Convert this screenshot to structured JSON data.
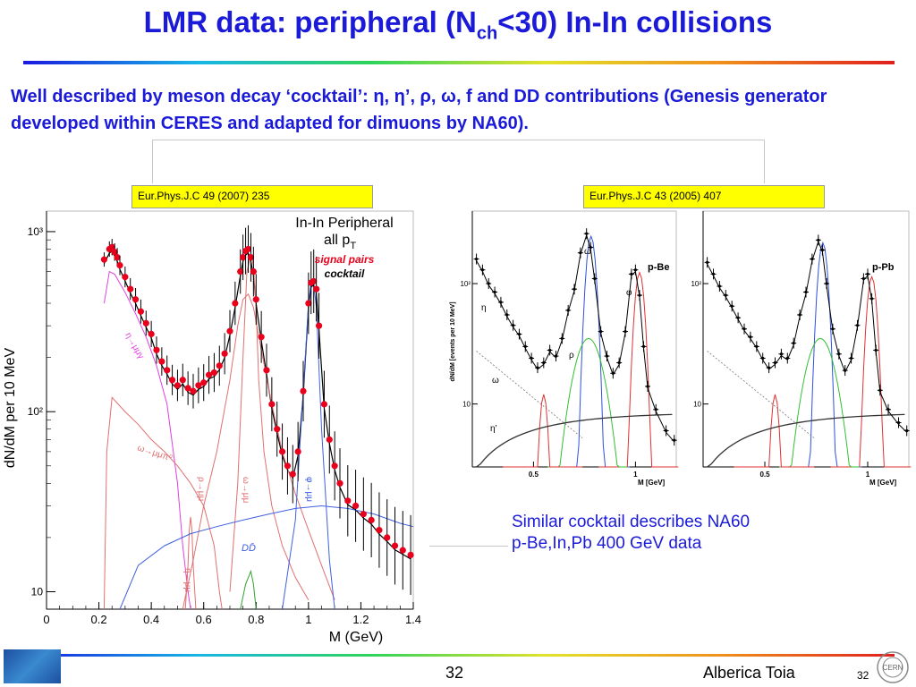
{
  "slide": {
    "title_main": "LMR data: peripheral (N",
    "title_sub": "ch",
    "title_rest": "<30) In-In collisions",
    "subtitle": "Well described by meson decay ‘cocktail’: η, η’, ρ, ω, f and DD contributions (Genesis generator developed within CERES and adapted for dimuons by NA60).",
    "ref_left": "Eur.Phys.J.C 49 (2007) 235",
    "ref_right": "Eur.Phys.J.C 43 (2005) 407",
    "note_line1": "Similar cocktail describes NA60",
    "note_line2": "p-Be,In,Pb 400 GeV data",
    "page_number": "32",
    "author": "Alberica Toia",
    "page_number_small": "32",
    "logo_text": "CERN",
    "colors": {
      "title": "#1a1ad8",
      "signal": "#e8001c",
      "ref_bg": "#ffff00"
    }
  },
  "chart_data": [
    {
      "type": "line",
      "panel": "In-In",
      "title": "In-In Peripheral",
      "subtitle": "all p",
      "subtitle_sub": "T",
      "legend": [
        "signal pairs",
        "cocktail"
      ],
      "xlabel": "M (GeV)",
      "ylabel": "dN/dM per 10 MeV",
      "xlim": [
        0,
        1.4
      ],
      "ylim": [
        8,
        1300
      ],
      "yscale": "log",
      "xticks": [
        "0",
        "0.2",
        "0.4",
        "0.6",
        "0.8",
        "1",
        "1.2",
        "1.4"
      ],
      "yticks": [
        "10",
        "10²",
        "10³"
      ],
      "annotations": [
        "η→μμγ",
        "ω→μμπ⁰",
        "ρ→μμ",
        "ω→μμ",
        "η→μμ",
        "φ→μμ",
        "DD̄"
      ],
      "series": [
        {
          "name": "signal pairs",
          "color": "#e8001c",
          "x": [
            0.22,
            0.24,
            0.25,
            0.26,
            0.27,
            0.28,
            0.3,
            0.32,
            0.34,
            0.36,
            0.38,
            0.4,
            0.42,
            0.44,
            0.46,
            0.48,
            0.5,
            0.52,
            0.54,
            0.56,
            0.58,
            0.6,
            0.62,
            0.64,
            0.66,
            0.68,
            0.7,
            0.72,
            0.74,
            0.75,
            0.76,
            0.77,
            0.78,
            0.79,
            0.8,
            0.82,
            0.84,
            0.86,
            0.88,
            0.9,
            0.92,
            0.94,
            0.96,
            0.98,
            1.0,
            1.01,
            1.02,
            1.03,
            1.04,
            1.06,
            1.08,
            1.1,
            1.12,
            1.15,
            1.18,
            1.21,
            1.24,
            1.27,
            1.3,
            1.33,
            1.36,
            1.39
          ],
          "y": [
            700,
            800,
            820,
            770,
            720,
            650,
            560,
            480,
            420,
            360,
            310,
            270,
            220,
            190,
            170,
            150,
            140,
            150,
            135,
            130,
            140,
            145,
            160,
            165,
            180,
            210,
            280,
            400,
            600,
            720,
            780,
            800,
            720,
            600,
            420,
            260,
            170,
            110,
            80,
            60,
            50,
            45,
            60,
            130,
            400,
            520,
            530,
            480,
            300,
            110,
            70,
            50,
            40,
            32,
            30,
            27,
            25,
            22,
            20,
            18,
            17,
            16
          ]
        },
        {
          "name": "η→μμγ",
          "color": "#e040e0",
          "x": [
            0.22,
            0.24,
            0.26,
            0.3,
            0.34,
            0.38,
            0.42,
            0.46,
            0.5,
            0.52,
            0.54,
            0.55
          ],
          "y": [
            400,
            600,
            580,
            460,
            350,
            260,
            180,
            110,
            40,
            18,
            10,
            8
          ]
        },
        {
          "name": "ω→μμπ⁰",
          "color": "#e07070",
          "x": [
            0.22,
            0.23,
            0.25,
            0.3,
            0.35,
            0.4,
            0.45,
            0.5,
            0.55,
            0.6,
            0.64,
            0.66,
            0.67
          ],
          "y": [
            8,
            60,
            120,
            100,
            85,
            70,
            60,
            50,
            40,
            30,
            18,
            10,
            8
          ]
        },
        {
          "name": "ρ→μμ",
          "color": "#e07070",
          "x": [
            0.52,
            0.56,
            0.6,
            0.65,
            0.7,
            0.73,
            0.75,
            0.77,
            0.79,
            0.82,
            0.86,
            0.9,
            0.95,
            1.0,
            1.05,
            1.1
          ],
          "y": [
            8,
            15,
            30,
            60,
            150,
            300,
            420,
            450,
            380,
            220,
            110,
            60,
            35,
            22,
            14,
            9
          ]
        },
        {
          "name": "ω→μμ",
          "color": "#e07070",
          "x": [
            0.7,
            0.73,
            0.75,
            0.765,
            0.78,
            0.79,
            0.8,
            0.81,
            0.83,
            0.86,
            0.9,
            0.95,
            1.0
          ],
          "y": [
            10,
            40,
            200,
            600,
            740,
            650,
            380,
            150,
            60,
            30,
            18,
            12,
            9
          ]
        },
        {
          "name": "η→μμ",
          "color": "#e07070",
          "x": [
            0.53,
            0.54,
            0.545,
            0.55,
            0.555,
            0.56,
            0.57
          ],
          "y": [
            8,
            14,
            22,
            26,
            22,
            14,
            8
          ]
        },
        {
          "name": "φ→μμ",
          "color": "#4060e0",
          "x": [
            0.9,
            0.95,
            0.98,
            1.0,
            1.01,
            1.02,
            1.03,
            1.05,
            1.08,
            1.1
          ],
          "y": [
            8,
            25,
            130,
            400,
            520,
            510,
            380,
            80,
            15,
            8
          ]
        },
        {
          "name": "DD̄",
          "color": "#4060e0",
          "x": [
            0.28,
            0.35,
            0.45,
            0.55,
            0.65,
            0.75,
            0.85,
            0.95,
            1.05,
            1.15,
            1.25,
            1.35,
            1.4
          ],
          "y": [
            8,
            14,
            18,
            21,
            23,
            25,
            27,
            29,
            30,
            29,
            27,
            24,
            23
          ]
        },
        {
          "name": "η'→μμγ",
          "color": "#30a030",
          "x": [
            0.74,
            0.76,
            0.78,
            0.79,
            0.8
          ],
          "y": [
            8,
            11,
            13,
            11,
            8
          ]
        }
      ]
    },
    {
      "type": "line",
      "panel": "p-Be",
      "label": "p-Be",
      "xlabel": "M [GeV]",
      "ylabel": "dN/dM [events per 10 MeV]",
      "xlim": [
        0.2,
        1.2
      ],
      "ylim": [
        3,
        400
      ],
      "yscale": "log",
      "xticks": [
        "0.5",
        "1"
      ],
      "yticks": [
        "10",
        "10²"
      ],
      "annotations": [
        "ω",
        "φ",
        "ρ",
        "η",
        "ω",
        "η’"
      ],
      "series": [
        {
          "name": "data",
          "color": "#000000",
          "x": [
            0.22,
            0.25,
            0.28,
            0.31,
            0.34,
            0.37,
            0.4,
            0.43,
            0.46,
            0.49,
            0.52,
            0.55,
            0.58,
            0.61,
            0.64,
            0.67,
            0.7,
            0.73,
            0.76,
            0.78,
            0.8,
            0.83,
            0.86,
            0.89,
            0.92,
            0.95,
            0.98,
            1.0,
            1.02,
            1.04,
            1.06,
            1.1,
            1.15,
            1.19
          ],
          "y": [
            160,
            130,
            100,
            85,
            70,
            55,
            45,
            38,
            30,
            24,
            20,
            22,
            28,
            25,
            35,
            60,
            90,
            180,
            260,
            200,
            110,
            40,
            25,
            18,
            22,
            40,
            120,
            130,
            80,
            30,
            14,
            9,
            6,
            5
          ]
        }
      ]
    },
    {
      "type": "line",
      "panel": "p-Pb",
      "label": "p-Pb",
      "xlabel": "M [GeV]",
      "xlim": [
        0.2,
        1.2
      ],
      "ylim": [
        3,
        400
      ],
      "yscale": "log",
      "xticks": [
        "0.5",
        "1"
      ],
      "yticks": [
        "10",
        "10²"
      ],
      "series": [
        {
          "name": "data",
          "color": "#000000",
          "x": [
            0.22,
            0.25,
            0.28,
            0.31,
            0.34,
            0.37,
            0.4,
            0.43,
            0.46,
            0.49,
            0.52,
            0.55,
            0.58,
            0.61,
            0.64,
            0.67,
            0.7,
            0.73,
            0.76,
            0.78,
            0.8,
            0.83,
            0.86,
            0.89,
            0.92,
            0.95,
            0.98,
            1.0,
            1.02,
            1.04,
            1.06,
            1.1,
            1.15,
            1.19
          ],
          "y": [
            150,
            120,
            95,
            80,
            65,
            52,
            42,
            36,
            30,
            24,
            20,
            22,
            26,
            24,
            32,
            55,
            85,
            160,
            230,
            190,
            100,
            42,
            26,
            19,
            24,
            45,
            110,
            120,
            75,
            28,
            13,
            9,
            7,
            6
          ]
        }
      ]
    }
  ]
}
